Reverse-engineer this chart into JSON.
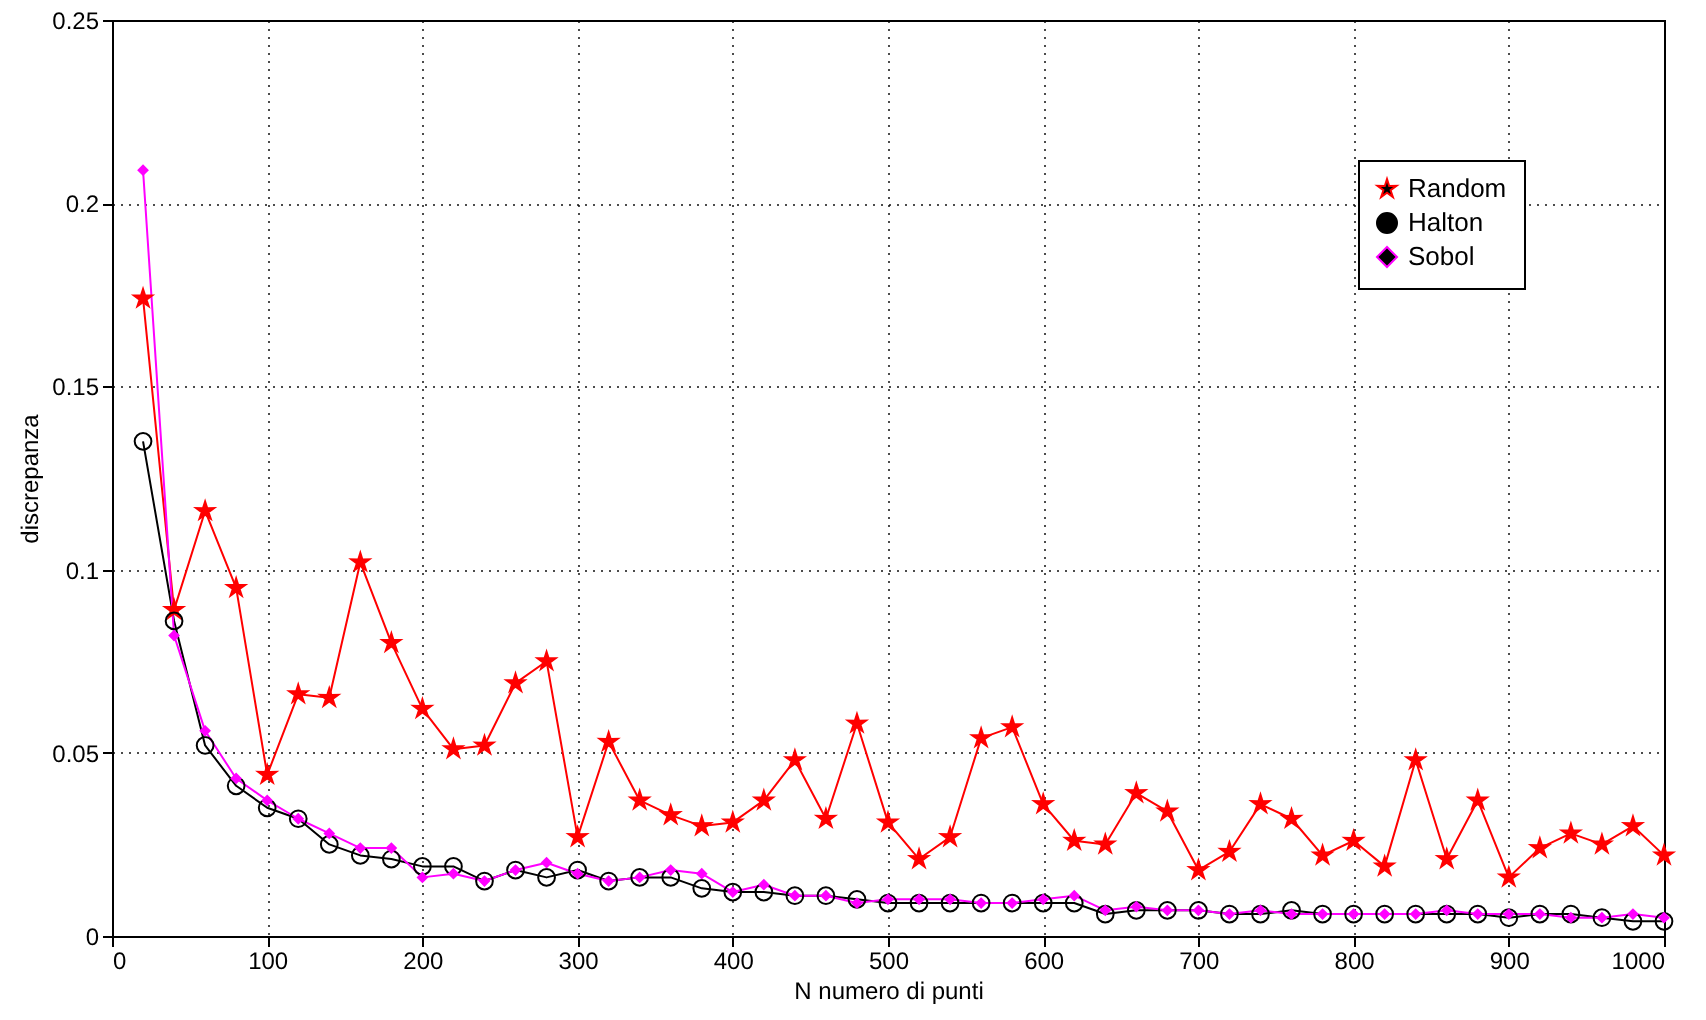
{
  "chart_data": {
    "type": "line",
    "xlabel": "N numero di punti",
    "ylabel": "discrepanza",
    "x": [
      20,
      40,
      60,
      80,
      100,
      120,
      140,
      160,
      180,
      200,
      220,
      240,
      260,
      280,
      300,
      320,
      340,
      360,
      380,
      400,
      420,
      440,
      460,
      480,
      500,
      520,
      540,
      560,
      580,
      600,
      620,
      640,
      660,
      680,
      700,
      720,
      740,
      760,
      780,
      800,
      820,
      840,
      860,
      880,
      900,
      920,
      940,
      960,
      980,
      1000
    ],
    "series": [
      {
        "name": "Random",
        "color": "#ff0000",
        "marker": "star",
        "values": [
          0.174,
          0.089,
          0.116,
          0.095,
          0.044,
          0.066,
          0.065,
          0.102,
          0.08,
          0.062,
          0.051,
          0.052,
          0.069,
          0.075,
          0.027,
          0.053,
          0.037,
          0.033,
          0.03,
          0.031,
          0.037,
          0.048,
          0.032,
          0.058,
          0.031,
          0.021,
          0.027,
          0.054,
          0.057,
          0.036,
          0.026,
          0.025,
          0.039,
          0.034,
          0.018,
          0.023,
          0.036,
          0.032,
          0.022,
          0.026,
          0.019,
          0.048,
          0.021,
          0.037,
          0.016,
          0.024,
          0.028,
          0.025,
          0.03,
          0.022
        ]
      },
      {
        "name": "Halton",
        "color": "#000000",
        "marker": "circle",
        "values": [
          0.135,
          0.086,
          0.052,
          0.041,
          0.035,
          0.032,
          0.025,
          0.022,
          0.021,
          0.019,
          0.019,
          0.015,
          0.018,
          0.016,
          0.018,
          0.015,
          0.016,
          0.016,
          0.013,
          0.012,
          0.012,
          0.011,
          0.011,
          0.01,
          0.009,
          0.009,
          0.009,
          0.009,
          0.009,
          0.009,
          0.009,
          0.006,
          0.007,
          0.007,
          0.007,
          0.006,
          0.006,
          0.007,
          0.006,
          0.006,
          0.006,
          0.006,
          0.006,
          0.006,
          0.005,
          0.006,
          0.006,
          0.005,
          0.004,
          0.004
        ]
      },
      {
        "name": "Sobol",
        "color": "#ff00ff",
        "marker": "diamond",
        "values": [
          0.209,
          0.082,
          0.056,
          0.043,
          0.037,
          0.032,
          0.028,
          0.024,
          0.024,
          0.016,
          0.017,
          0.015,
          0.018,
          0.02,
          0.017,
          0.015,
          0.016,
          0.018,
          0.017,
          0.012,
          0.014,
          0.011,
          0.011,
          0.009,
          0.01,
          0.01,
          0.01,
          0.009,
          0.009,
          0.01,
          0.011,
          0.007,
          0.008,
          0.007,
          0.007,
          0.006,
          0.007,
          0.006,
          0.006,
          0.006,
          0.006,
          0.006,
          0.007,
          0.006,
          0.006,
          0.006,
          0.005,
          0.005,
          0.006,
          0.005
        ]
      }
    ],
    "xlim": [
      0,
      1000
    ],
    "xticks": [
      0,
      100,
      200,
      300,
      400,
      500,
      600,
      700,
      800,
      900,
      1000
    ],
    "ylim": [
      0,
      0.25
    ],
    "yticks": [
      0,
      0.05,
      0.1,
      0.15,
      0.2,
      0.25
    ],
    "grid": true,
    "legend": "top right",
    "line_style": "solid"
  }
}
